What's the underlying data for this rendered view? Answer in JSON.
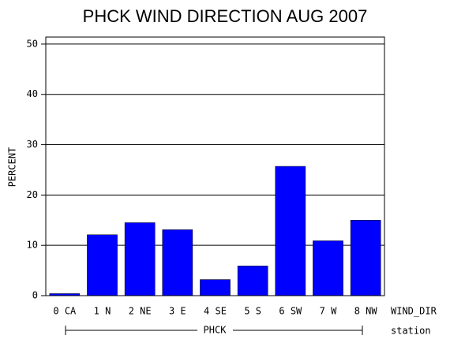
{
  "chart_data": {
    "type": "bar",
    "title": "PHCK WIND DIRECTION AUG 2007",
    "y_label": "PERCENT",
    "x_label": "WIND_DIR",
    "group_label": "PHCK",
    "group_axis_label": "station",
    "categories": [
      "0 CA",
      "1 N",
      "2 NE",
      "3 E",
      "4 SE",
      "5 S",
      "6 SW",
      "7 W",
      "8 NW"
    ],
    "values": [
      0.4,
      12.1,
      14.5,
      13.1,
      3.2,
      5.9,
      25.7,
      10.9,
      15.0
    ],
    "color": "#0000ff",
    "ylim": [
      0,
      51.4
    ],
    "yticks": [
      0,
      10,
      20,
      30,
      40,
      50
    ],
    "grid": true
  }
}
